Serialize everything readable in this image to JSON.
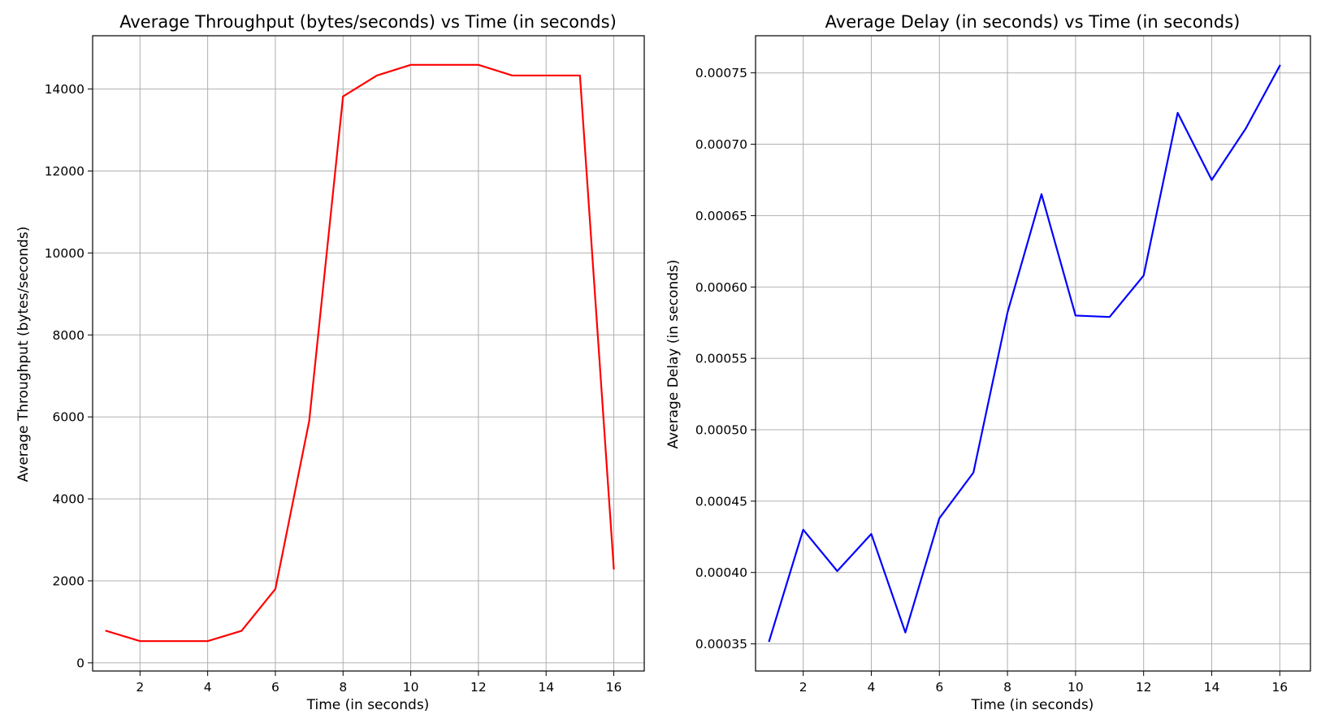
{
  "chart_data": [
    {
      "type": "line",
      "title": "Average Throughput (bytes/seconds) vs Time (in seconds)",
      "xlabel": "Time (in seconds)",
      "ylabel": "Average Throughput (bytes/seconds)",
      "xlim": [
        0.6,
        16.9
      ],
      "ylim": [
        -200,
        15300
      ],
      "xticks": [
        2,
        4,
        6,
        8,
        10,
        12,
        14,
        16
      ],
      "yticks": [
        0,
        2000,
        4000,
        6000,
        8000,
        10000,
        12000,
        14000
      ],
      "grid": true,
      "series": [
        {
          "color": "#ff0000",
          "x": [
            1,
            2,
            3,
            4,
            5,
            6,
            7,
            8,
            9,
            10,
            11,
            12,
            13,
            14,
            15,
            16
          ],
          "values": [
            780,
            530,
            530,
            530,
            780,
            1800,
            5900,
            13820,
            14330,
            14590,
            14590,
            14590,
            14330,
            14330,
            14330,
            2300
          ]
        }
      ]
    },
    {
      "type": "line",
      "title": "Average Delay (in seconds) vs Time (in seconds)",
      "xlabel": "Time (in seconds)",
      "ylabel": "Average Delay (in seconds)",
      "xlim": [
        0.6,
        16.9
      ],
      "ylim": [
        0.000331,
        0.000776
      ],
      "xticks": [
        2,
        4,
        6,
        8,
        10,
        12,
        14,
        16
      ],
      "yticks": [
        0.00035,
        0.0004,
        0.00045,
        0.0005,
        0.00055,
        0.0006,
        0.00065,
        0.0007,
        0.00075
      ],
      "ytick_labels": [
        "0.00035",
        "0.00040",
        "0.00045",
        "0.00050",
        "0.00055",
        "0.00060",
        "0.00065",
        "0.00070",
        "0.00075"
      ],
      "grid": true,
      "series": [
        {
          "color": "#0000ff",
          "x": [
            1,
            2,
            3,
            4,
            5,
            6,
            7,
            8,
            9,
            10,
            11,
            12,
            13,
            14,
            15,
            16
          ],
          "values": [
            0.000352,
            0.00043,
            0.000401,
            0.000427,
            0.000358,
            0.000438,
            0.00047,
            0.000582,
            0.000665,
            0.00058,
            0.000579,
            0.000608,
            0.000722,
            0.000675,
            0.000711,
            0.000755
          ]
        }
      ]
    }
  ]
}
